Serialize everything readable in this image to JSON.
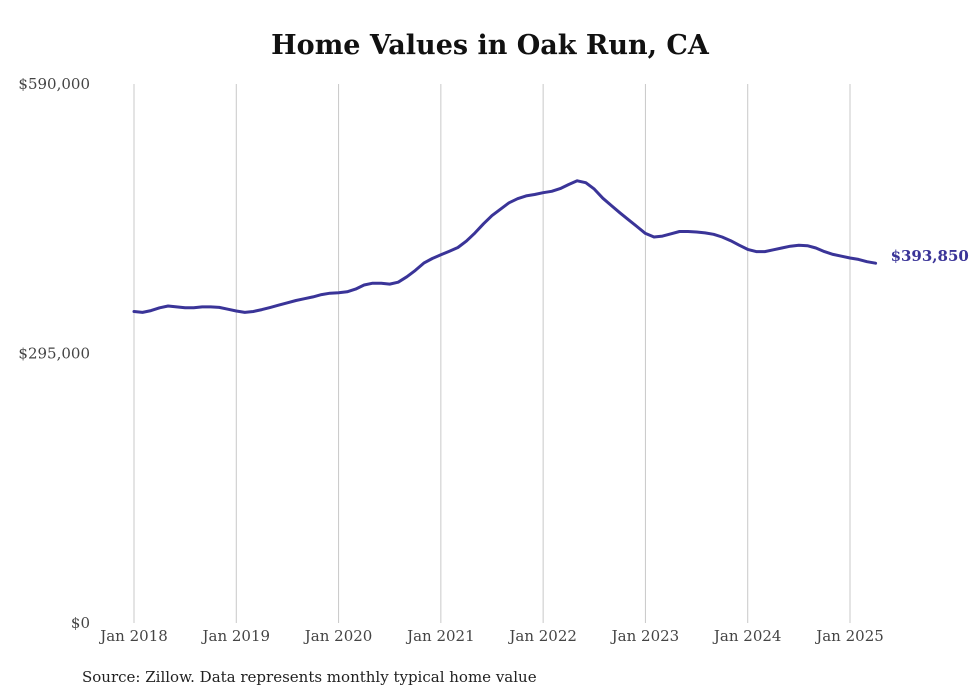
{
  "title": "Home Values in Oak Run, CA",
  "source": "Source: Zillow. Data represents monthly typical home value",
  "colors": {
    "line": "#3a3498",
    "grid": "#c8c8c8",
    "text": "#444444"
  },
  "chart_data": {
    "type": "line",
    "title": "Home Values in Oak Run, CA",
    "xlabel": "",
    "ylabel": "",
    "ylim": [
      0,
      590000
    ],
    "ytick_values": [
      0,
      295000,
      590000
    ],
    "ytick_labels": [
      "$0",
      "$295,000",
      "$590,000"
    ],
    "xlim": [
      "2018-01",
      "2025-04"
    ],
    "xtick_values": [
      "2018-01",
      "2019-01",
      "2020-01",
      "2021-01",
      "2022-01",
      "2023-01",
      "2024-01",
      "2025-01"
    ],
    "xtick_labels": [
      "Jan 2018",
      "Jan 2019",
      "Jan 2020",
      "Jan 2021",
      "Jan 2022",
      "Jan 2023",
      "Jan 2024",
      "Jan 2025"
    ],
    "grid": "vertical",
    "end_label": "$393,850",
    "series": [
      {
        "points": [
          [
            "2018-01",
            341000
          ],
          [
            "2018-02",
            340000
          ],
          [
            "2018-03",
            342000
          ],
          [
            "2018-04",
            345000
          ],
          [
            "2018-05",
            347000
          ],
          [
            "2018-06",
            346000
          ],
          [
            "2018-07",
            345000
          ],
          [
            "2018-08",
            345000
          ],
          [
            "2018-09",
            346000
          ],
          [
            "2018-10",
            346000
          ],
          [
            "2018-11",
            345500
          ],
          [
            "2018-12",
            343500
          ],
          [
            "2019-01",
            341500
          ],
          [
            "2019-02",
            340000
          ],
          [
            "2019-03",
            341000
          ],
          [
            "2019-04",
            343000
          ],
          [
            "2019-05",
            345500
          ],
          [
            "2019-06",
            348000
          ],
          [
            "2019-07",
            350500
          ],
          [
            "2019-08",
            353000
          ],
          [
            "2019-09",
            355000
          ],
          [
            "2019-10",
            357000
          ],
          [
            "2019-11",
            359500
          ],
          [
            "2019-12",
            361000
          ],
          [
            "2020-01",
            361500
          ],
          [
            "2020-02",
            362500
          ],
          [
            "2020-03",
            365500
          ],
          [
            "2020-04",
            370000
          ],
          [
            "2020-05",
            372000
          ],
          [
            "2020-06",
            372000
          ],
          [
            "2020-07",
            371000
          ],
          [
            "2020-08",
            373000
          ],
          [
            "2020-09",
            379000
          ],
          [
            "2020-10",
            386000
          ],
          [
            "2020-11",
            394000
          ],
          [
            "2020-12",
            399000
          ],
          [
            "2021-01",
            403000
          ],
          [
            "2021-02",
            407000
          ],
          [
            "2021-03",
            411000
          ],
          [
            "2021-04",
            418000
          ],
          [
            "2021-05",
            427000
          ],
          [
            "2021-06",
            437000
          ],
          [
            "2021-07",
            446000
          ],
          [
            "2021-08",
            453000
          ],
          [
            "2021-09",
            460000
          ],
          [
            "2021-10",
            464500
          ],
          [
            "2021-11",
            467500
          ],
          [
            "2021-12",
            469000
          ],
          [
            "2022-01",
            471000
          ],
          [
            "2022-02",
            472500
          ],
          [
            "2022-03",
            475500
          ],
          [
            "2022-04",
            480000
          ],
          [
            "2022-05",
            484000
          ],
          [
            "2022-06",
            482000
          ],
          [
            "2022-07",
            475000
          ],
          [
            "2022-08",
            465000
          ],
          [
            "2022-09",
            457000
          ],
          [
            "2022-10",
            449000
          ],
          [
            "2022-11",
            441500
          ],
          [
            "2022-12",
            434000
          ],
          [
            "2023-01",
            426500
          ],
          [
            "2023-02",
            422500
          ],
          [
            "2023-03",
            423500
          ],
          [
            "2023-04",
            426000
          ],
          [
            "2023-05",
            428500
          ],
          [
            "2023-06",
            428500
          ],
          [
            "2023-07",
            428000
          ],
          [
            "2023-08",
            427000
          ],
          [
            "2023-09",
            425500
          ],
          [
            "2023-10",
            422500
          ],
          [
            "2023-11",
            418500
          ],
          [
            "2023-12",
            413500
          ],
          [
            "2024-01",
            409000
          ],
          [
            "2024-02",
            406500
          ],
          [
            "2024-03",
            406500
          ],
          [
            "2024-04",
            408500
          ],
          [
            "2024-05",
            410500
          ],
          [
            "2024-06",
            412500
          ],
          [
            "2024-07",
            413500
          ],
          [
            "2024-08",
            413000
          ],
          [
            "2024-09",
            410500
          ],
          [
            "2024-10",
            406500
          ],
          [
            "2024-11",
            403500
          ],
          [
            "2024-12",
            401500
          ],
          [
            "2025-01",
            399500
          ],
          [
            "2025-02",
            398000
          ],
          [
            "2025-03",
            395500
          ],
          [
            "2025-04",
            393850
          ]
        ]
      }
    ]
  }
}
